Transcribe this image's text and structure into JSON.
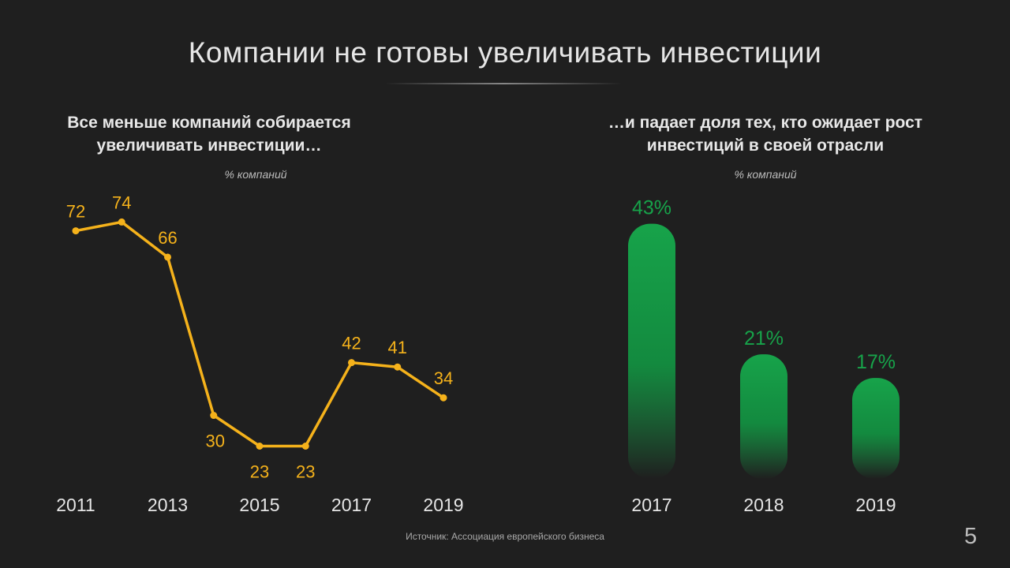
{
  "slide": {
    "title": "Компании не готовы увеличивать инвестиции",
    "source": "Источник: Ассоциация европейского бизнеса",
    "page_number": "5"
  },
  "chart_data": [
    {
      "type": "line",
      "title": "Все меньше компаний собирается увеличивать инвестиции…",
      "unit": "% компаний",
      "x": [
        2011,
        2012,
        2013,
        2014,
        2015,
        2016,
        2017,
        2018,
        2019
      ],
      "values": [
        72,
        74,
        66,
        30,
        23,
        23,
        42,
        41,
        34
      ],
      "x_tick_labels": [
        "2011",
        "2013",
        "2015",
        "2017",
        "2019"
      ],
      "color": "#f5b21b",
      "grid": false
    },
    {
      "type": "bar",
      "title": "…и падает доля тех, кто ожидает рост инвестиций в своей отрасли",
      "unit": "% компаний",
      "categories": [
        "2017",
        "2018",
        "2019"
      ],
      "values": [
        43,
        21,
        17
      ],
      "value_labels": [
        "43%",
        "21%",
        "17%"
      ],
      "color": "#17a34a",
      "grid": false
    }
  ]
}
